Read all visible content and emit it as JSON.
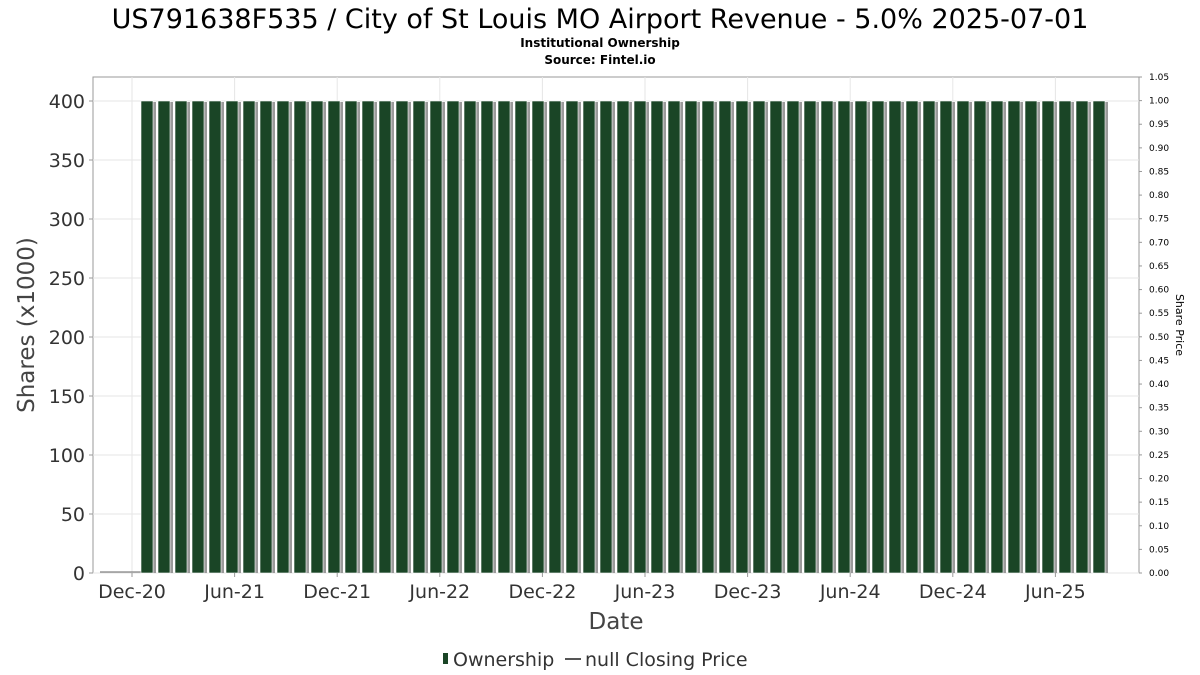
{
  "chart_data": {
    "type": "bar",
    "title": "US791638F535 / City of St Louis MO Airport Revenue - 5.0% 2025-07-01",
    "subtitle": "Institutional Ownership",
    "source": "Source: Fintel.io",
    "xlabel": "Date",
    "ylabel": "Shares (x1000)",
    "y2label": "Share Price",
    "ylim": [
      0,
      400
    ],
    "yticks": [
      "0",
      "50",
      "100",
      "150",
      "200",
      "250",
      "300",
      "350",
      "400"
    ],
    "y2lim": [
      0.0,
      1.05
    ],
    "y2ticks": [
      "0.00",
      "0.05",
      "0.10",
      "0.15",
      "0.20",
      "0.25",
      "0.30",
      "0.35",
      "0.40",
      "0.45",
      "0.50",
      "0.55",
      "0.60",
      "0.65",
      "0.70",
      "0.75",
      "0.80",
      "0.85",
      "0.90",
      "0.95",
      "1.00",
      "1.05"
    ],
    "xtick_labels": [
      "Dec-20",
      "Jun-21",
      "Dec-21",
      "Jun-22",
      "Dec-22",
      "Jun-23",
      "Dec-23",
      "Jun-24",
      "Dec-24",
      "Jun-25"
    ],
    "series": [
      {
        "name": "Ownership",
        "color": "#1a4526",
        "values": [
          400,
          400,
          400,
          400,
          400,
          400,
          400,
          400,
          400,
          400,
          400,
          400,
          400,
          400,
          400,
          400,
          400,
          400,
          400,
          400,
          400,
          400,
          400,
          400,
          400,
          400,
          400,
          400,
          400,
          400,
          400,
          400,
          400,
          400,
          400,
          400,
          400,
          400,
          400,
          400,
          400,
          400,
          400,
          400,
          400,
          400,
          400,
          400,
          400,
          400,
          400,
          400,
          400,
          400,
          400,
          400,
          400
        ]
      },
      {
        "name": "null Closing Price",
        "color": "#555555",
        "values": []
      }
    ],
    "grid": true,
    "legend": "bottom-center"
  }
}
